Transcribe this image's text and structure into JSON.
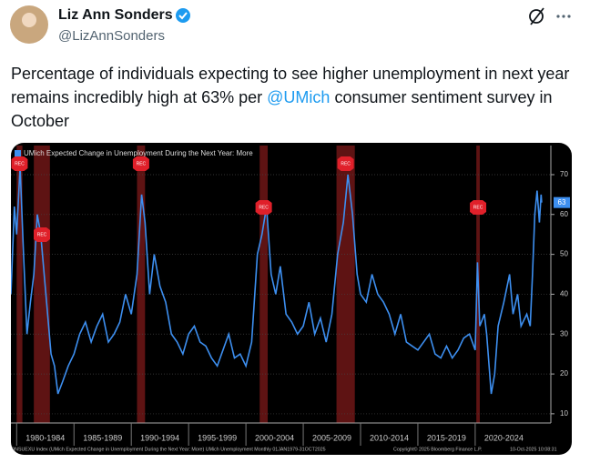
{
  "tweet": {
    "author": {
      "name": "Liz Ann Sonders",
      "handle": "@LizAnnSonders"
    },
    "text_before": "Percentage of individuals expecting to see higher unemployment in next year remains incredibly high at 63% per ",
    "mention": "@UMich",
    "text_after": " consumer sentiment survey in October"
  },
  "chart_data": {
    "type": "line",
    "series": [
      {
        "name": "UMich Expected Change in Unemployment During the Next Year: More",
        "color": "#3d8ff0",
        "values": [
          40,
          62,
          55,
          72,
          50,
          30,
          38,
          45,
          60,
          55,
          45,
          35,
          25,
          22,
          15,
          18,
          22,
          25,
          30,
          33,
          28,
          32,
          35,
          28,
          30,
          33,
          40,
          35,
          45,
          65,
          58,
          40,
          50,
          42,
          38,
          30,
          28,
          25,
          30,
          32,
          28,
          27,
          24,
          22,
          26,
          30,
          24,
          25,
          22,
          28,
          50,
          55,
          62,
          45,
          40,
          47,
          35,
          33,
          30,
          32,
          38,
          30,
          34,
          28,
          35,
          50,
          58,
          70,
          60,
          45,
          40,
          38,
          45,
          40,
          38,
          35,
          30,
          35,
          28,
          27,
          26,
          28,
          30,
          25,
          24,
          27,
          24,
          26,
          29,
          30,
          26,
          48,
          32,
          35,
          30,
          15,
          20,
          32,
          38,
          45,
          35,
          40,
          32,
          35,
          32,
          45,
          60,
          66,
          58,
          65,
          63
        ],
        "value_labels": {
          "last": "63"
        }
      }
    ],
    "x": [
      1979.5,
      1979.8,
      1980.0,
      1980.3,
      1980.6,
      1980.9,
      1981.2,
      1981.5,
      1981.8,
      1982.1,
      1982.4,
      1982.7,
      1983.0,
      1983.3,
      1983.6,
      1984.0,
      1984.5,
      1985,
      1985.5,
      1986,
      1986.5,
      1987,
      1987.5,
      1988,
      1988.5,
      1989,
      1989.5,
      1990,
      1990.5,
      1990.9,
      1991.2,
      1991.6,
      1992,
      1992.5,
      1993,
      1993.5,
      1994,
      1994.5,
      1995,
      1995.5,
      1996,
      1996.5,
      1997,
      1997.5,
      1998,
      1998.5,
      1999,
      1999.5,
      2000,
      2000.5,
      2001,
      2001.4,
      2001.8,
      2002.2,
      2002.6,
      2003,
      2003.5,
      2004,
      2004.5,
      2005,
      2005.5,
      2006,
      2006.5,
      2007,
      2007.5,
      2008,
      2008.5,
      2008.9,
      2009.3,
      2009.7,
      2010,
      2010.5,
      2011,
      2011.5,
      2012,
      2012.5,
      2013,
      2013.5,
      2014,
      2014.5,
      2015,
      2015.5,
      2016,
      2016.5,
      2017,
      2017.5,
      2018,
      2018.5,
      2019,
      2019.5,
      2020,
      2020.2,
      2020.4,
      2020.8,
      2021,
      2021.4,
      2021.7,
      2022,
      2022.5,
      2023,
      2023.3,
      2023.7,
      2024,
      2024.5,
      2024.8,
      2025,
      2025.2,
      2025.4,
      2025.6,
      2025.75,
      2025.8
    ],
    "xlim": [
      1979.5,
      2026.6
    ],
    "xticks": [
      {
        "value": 1980,
        "label": "1980-1984"
      },
      {
        "value": 1985,
        "label": "1985-1989"
      },
      {
        "value": 1990,
        "label": "1990-1994"
      },
      {
        "value": 1995,
        "label": "1995-1999"
      },
      {
        "value": 2000,
        "label": "2000-2004"
      },
      {
        "value": 2005,
        "label": "2005-2009"
      },
      {
        "value": 2010,
        "label": "2010-2014"
      },
      {
        "value": 2015,
        "label": "2015-2019"
      },
      {
        "value": 2020,
        "label": "2020-2024"
      }
    ],
    "ylim": [
      7.7,
      77.3
    ],
    "yticks": [
      10,
      20,
      30,
      40,
      50,
      60,
      70
    ],
    "grid": true,
    "recessions": [
      [
        1980.0,
        1980.5
      ],
      [
        1981.5,
        1982.9
      ],
      [
        1990.5,
        1991.2
      ],
      [
        2001.2,
        2001.9
      ],
      [
        2007.9,
        2009.5
      ],
      [
        2020.1,
        2020.4
      ]
    ],
    "recession_label": "REC",
    "footer": [
      "ONSUEXU Index (UMich Expected Change in Unemployment During the Next Year: More)  UMich Unemployment Monthly 01JAN1979-31OCT2025",
      "Copyright© 2025 Bloomberg Finance L.P.",
      "10-Oct-2025 10:08:31"
    ]
  }
}
